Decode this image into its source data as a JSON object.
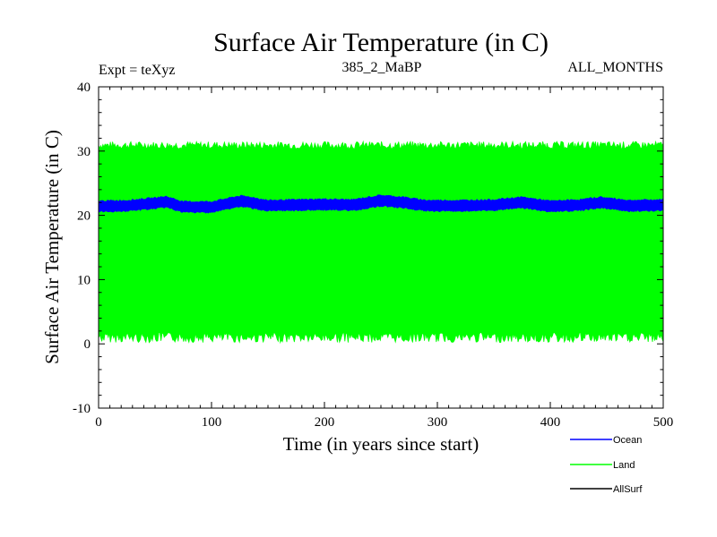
{
  "chart_data": {
    "type": "line",
    "title": "Surface Air Temperature (in C)",
    "subtitle_left": "Expt = teXyz",
    "subtitle_center": "385_2_MaBP",
    "subtitle_right": "ALL_MONTHS",
    "xlabel": "Time (in years since start)",
    "ylabel": "Surface Air Temperature (in C)",
    "xlim": [
      0,
      500
    ],
    "ylim": [
      -10,
      40
    ],
    "x_ticks": [
      0,
      100,
      200,
      300,
      400,
      500
    ],
    "y_ticks": [
      -10,
      0,
      10,
      20,
      30,
      40
    ],
    "x_tick_labels": [
      "0",
      "100",
      "200",
      "300",
      "400",
      "500"
    ],
    "y_tick_labels": [
      "-10",
      "0",
      "10",
      "20",
      "30",
      "40"
    ],
    "grid": false,
    "legend_position": "bottom-right",
    "series": [
      {
        "name": "Ocean",
        "color": "#0000ff",
        "style": "dense-oscillation",
        "band_min": 20.8,
        "band_max": 22.2,
        "mean": {
          "x": [
            0,
            25,
            50,
            60,
            75,
            100,
            125,
            135,
            150,
            175,
            200,
            225,
            250,
            270,
            290,
            320,
            350,
            375,
            400,
            425,
            445,
            470,
            500
          ],
          "y": [
            21.4,
            21.5,
            21.9,
            22.1,
            21.3,
            21.3,
            22.2,
            22.0,
            21.5,
            21.6,
            21.7,
            21.6,
            22.3,
            22.0,
            21.5,
            21.5,
            21.6,
            22.0,
            21.4,
            21.6,
            22.0,
            21.5,
            21.6
          ]
        }
      },
      {
        "name": "Land",
        "color": "#00ff00",
        "style": "dense-oscillation",
        "band_min": 1.8,
        "band_max": 30.3,
        "envelope_upper_max": 31.5,
        "envelope_lower_min": 0.2
      },
      {
        "name": "AllSurf",
        "color": "#000000",
        "style": "line",
        "visible_values": []
      }
    ]
  }
}
